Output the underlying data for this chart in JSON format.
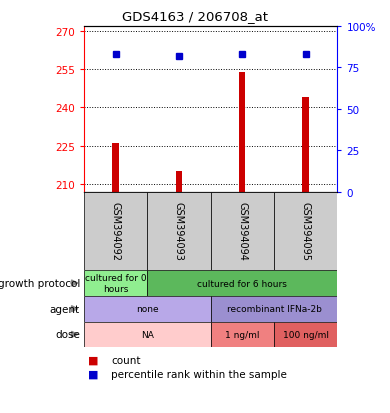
{
  "title": "GDS4163 / 206708_at",
  "samples": [
    "GSM394092",
    "GSM394093",
    "GSM394094",
    "GSM394095"
  ],
  "bar_values": [
    226,
    215,
    254,
    244
  ],
  "percentile_values": [
    83,
    82,
    83,
    83
  ],
  "ylim_left": [
    207,
    272
  ],
  "ylim_right": [
    0,
    100
  ],
  "left_ticks": [
    210,
    225,
    240,
    255,
    270
  ],
  "right_ticks": [
    0,
    25,
    50,
    75,
    100
  ],
  "bar_color": "#cc0000",
  "percentile_color": "#0000cc",
  "bar_bottom": 207,
  "growth_protocol": [
    {
      "label": "cultured for 0\nhours",
      "span": [
        0,
        1
      ],
      "color": "#90ee90"
    },
    {
      "label": "cultured for 6 hours",
      "span": [
        1,
        4
      ],
      "color": "#5cb85c"
    }
  ],
  "agent": [
    {
      "label": "none",
      "span": [
        0,
        2
      ],
      "color": "#b8a8e8"
    },
    {
      "label": "recombinant IFNa-2b",
      "span": [
        2,
        4
      ],
      "color": "#9b8fd0"
    }
  ],
  "dose": [
    {
      "label": "NA",
      "span": [
        0,
        2
      ],
      "color": "#ffcccc"
    },
    {
      "label": "1 ng/ml",
      "span": [
        2,
        3
      ],
      "color": "#f08080"
    },
    {
      "label": "100 ng/ml",
      "span": [
        3,
        4
      ],
      "color": "#e06060"
    }
  ],
  "row_labels": [
    "growth protocol",
    "agent",
    "dose"
  ],
  "legend_count_label": "count",
  "legend_percentile_label": "percentile rank within the sample"
}
